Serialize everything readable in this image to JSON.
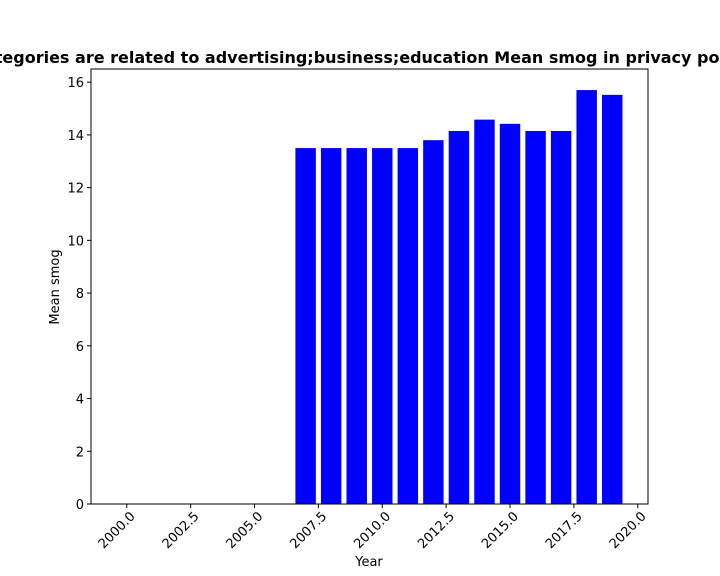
{
  "chart_data": {
    "type": "bar",
    "title": "Categories are related to advertising;business;education Mean smog in privacy policies",
    "xlabel": "Year",
    "ylabel": "Mean smog",
    "x": [
      2007,
      2008,
      2009,
      2010,
      2011,
      2012,
      2013,
      2014,
      2015,
      2016,
      2017,
      2018,
      2019
    ],
    "values": [
      13.5,
      13.5,
      13.5,
      13.5,
      13.5,
      13.8,
      14.15,
      14.58,
      14.42,
      14.15,
      14.15,
      15.7,
      15.52
    ],
    "xlim": [
      1998.6,
      2020.4
    ],
    "ylim": [
      0,
      16.5
    ],
    "xticks": [
      "2000.0",
      "2002.5",
      "2005.0",
      "2007.5",
      "2010.0",
      "2012.5",
      "2015.0",
      "2017.5",
      "2020.0"
    ],
    "yticks": [
      "0",
      "2",
      "4",
      "6",
      "8",
      "10",
      "12",
      "14",
      "16"
    ],
    "bar_color": "#0000ff",
    "grid": false
  }
}
